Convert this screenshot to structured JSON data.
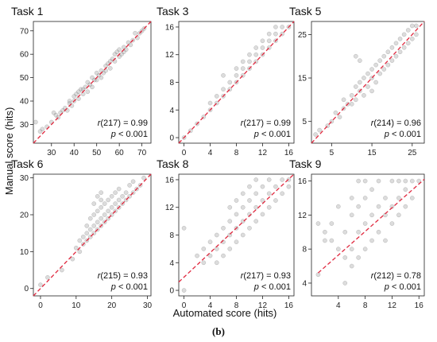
{
  "figure": {
    "ylabel": "Manual score (hits)",
    "xlabel": "Automated score (hits)",
    "caption": "(b)"
  },
  "chart_data": [
    {
      "type": "scatter",
      "title": "Task 1",
      "stat_r": "(217) = 0.99",
      "stat_p": "< 0.001",
      "xlim": [
        22,
        74
      ],
      "ylim": [
        22,
        74
      ],
      "xticks": [
        30,
        40,
        50,
        60,
        70
      ],
      "yticks": [
        30,
        40,
        50,
        60,
        70
      ],
      "fit": [
        [
          22,
          22
        ],
        [
          74,
          74
        ]
      ],
      "points": [
        [
          23,
          31
        ],
        [
          25,
          27
        ],
        [
          26,
          28
        ],
        [
          28,
          29
        ],
        [
          30,
          31
        ],
        [
          31,
          35
        ],
        [
          32,
          34
        ],
        [
          33,
          33
        ],
        [
          34,
          35
        ],
        [
          35,
          36
        ],
        [
          36,
          37
        ],
        [
          37,
          36
        ],
        [
          38,
          39
        ],
        [
          38,
          40
        ],
        [
          39,
          38
        ],
        [
          40,
          40
        ],
        [
          40,
          42
        ],
        [
          41,
          43
        ],
        [
          42,
          41
        ],
        [
          42,
          44
        ],
        [
          43,
          45
        ],
        [
          44,
          43
        ],
        [
          44,
          45
        ],
        [
          45,
          46
        ],
        [
          46,
          44
        ],
        [
          46,
          48
        ],
        [
          47,
          47
        ],
        [
          48,
          50
        ],
        [
          48,
          46
        ],
        [
          49,
          49
        ],
        [
          50,
          49
        ],
        [
          50,
          52
        ],
        [
          51,
          51
        ],
        [
          52,
          53
        ],
        [
          52,
          50
        ],
        [
          53,
          52
        ],
        [
          54,
          55
        ],
        [
          54,
          53
        ],
        [
          55,
          56
        ],
        [
          56,
          54
        ],
        [
          56,
          57
        ],
        [
          57,
          58
        ],
        [
          58,
          57
        ],
        [
          58,
          60
        ],
        [
          59,
          61
        ],
        [
          60,
          59
        ],
        [
          60,
          62
        ],
        [
          61,
          60
        ],
        [
          62,
          63
        ],
        [
          62,
          61
        ],
        [
          63,
          62
        ],
        [
          64,
          65
        ],
        [
          65,
          64
        ],
        [
          66,
          66
        ],
        [
          67,
          69
        ],
        [
          68,
          67
        ],
        [
          69,
          69
        ],
        [
          70,
          70
        ],
        [
          71,
          71
        ]
      ]
    },
    {
      "type": "scatter",
      "title": "Task 3",
      "stat_r": "(217) = 0.99",
      "stat_p": "< 0.001",
      "xlim": [
        -0.8,
        16.8
      ],
      "ylim": [
        -0.8,
        16.8
      ],
      "xticks": [
        0,
        4,
        8,
        12,
        16
      ],
      "yticks": [
        0,
        4,
        8,
        12,
        16
      ],
      "fit": [
        [
          -0.8,
          -0.8
        ],
        [
          16.8,
          16.8
        ]
      ],
      "points": [
        [
          0,
          0
        ],
        [
          1,
          1
        ],
        [
          2,
          2
        ],
        [
          3,
          3
        ],
        [
          4,
          4
        ],
        [
          4,
          5
        ],
        [
          5,
          5
        ],
        [
          5,
          6
        ],
        [
          6,
          6
        ],
        [
          6,
          7
        ],
        [
          6,
          9
        ],
        [
          7,
          7
        ],
        [
          7,
          8
        ],
        [
          8,
          8
        ],
        [
          8,
          9
        ],
        [
          8,
          10
        ],
        [
          9,
          9
        ],
        [
          9,
          10
        ],
        [
          9,
          11
        ],
        [
          10,
          10
        ],
        [
          10,
          11
        ],
        [
          10,
          12
        ],
        [
          11,
          11
        ],
        [
          11,
          12
        ],
        [
          11,
          13
        ],
        [
          12,
          12
        ],
        [
          12,
          13
        ],
        [
          12,
          14
        ],
        [
          13,
          13
        ],
        [
          13,
          14
        ],
        [
          13,
          15
        ],
        [
          14,
          14
        ],
        [
          14,
          15
        ],
        [
          14,
          16
        ],
        [
          15,
          15
        ],
        [
          15,
          16
        ],
        [
          16,
          16
        ]
      ]
    },
    {
      "type": "scatter",
      "title": "Task 5",
      "stat_r": "(214) = 0.96",
      "stat_p": "< 0.001",
      "xlim": [
        0,
        28
      ],
      "ylim": [
        0,
        28
      ],
      "xticks": [
        5,
        15,
        25
      ],
      "yticks": [
        5,
        15,
        25
      ],
      "fit": [
        [
          0,
          0
        ],
        [
          28,
          28
        ]
      ],
      "points": [
        [
          1,
          2
        ],
        [
          2,
          3
        ],
        [
          4,
          4
        ],
        [
          5,
          5
        ],
        [
          6,
          7
        ],
        [
          7,
          6
        ],
        [
          8,
          8
        ],
        [
          8,
          10
        ],
        [
          9,
          9
        ],
        [
          10,
          11
        ],
        [
          10,
          9
        ],
        [
          11,
          10
        ],
        [
          11,
          13
        ],
        [
          12,
          12
        ],
        [
          12,
          14
        ],
        [
          13,
          11
        ],
        [
          13,
          15
        ],
        [
          14,
          13
        ],
        [
          14,
          16
        ],
        [
          15,
          15
        ],
        [
          15,
          17
        ],
        [
          15,
          12
        ],
        [
          16,
          14
        ],
        [
          16,
          18
        ],
        [
          17,
          16
        ],
        [
          17,
          19
        ],
        [
          18,
          17
        ],
        [
          18,
          20
        ],
        [
          19,
          18
        ],
        [
          19,
          21
        ],
        [
          20,
          19
        ],
        [
          20,
          22
        ],
        [
          21,
          20
        ],
        [
          21,
          23
        ],
        [
          22,
          21
        ],
        [
          22,
          24
        ],
        [
          23,
          22
        ],
        [
          23,
          25
        ],
        [
          24,
          23
        ],
        [
          24,
          26
        ],
        [
          25,
          24
        ],
        [
          25,
          27
        ],
        [
          26,
          25
        ],
        [
          26,
          27
        ],
        [
          11,
          20
        ],
        [
          12,
          19
        ]
      ]
    },
    {
      "type": "scatter",
      "title": "Task 6",
      "stat_r": "(215) = 0.93",
      "stat_p": "< 0.001",
      "xlim": [
        -2,
        31
      ],
      "ylim": [
        -2,
        31
      ],
      "xticks": [
        0,
        10,
        20,
        30
      ],
      "yticks": [
        0,
        10,
        20,
        30
      ],
      "fit": [
        [
          -2,
          -2
        ],
        [
          31,
          31
        ]
      ],
      "points": [
        [
          0,
          1
        ],
        [
          2,
          3
        ],
        [
          6,
          5
        ],
        [
          9,
          8
        ],
        [
          10,
          11
        ],
        [
          11,
          10
        ],
        [
          11,
          13
        ],
        [
          12,
          12
        ],
        [
          12,
          14
        ],
        [
          13,
          13
        ],
        [
          13,
          15
        ],
        [
          13,
          17
        ],
        [
          14,
          14
        ],
        [
          14,
          16
        ],
        [
          14,
          19
        ],
        [
          15,
          15
        ],
        [
          15,
          17
        ],
        [
          15,
          20
        ],
        [
          15,
          23
        ],
        [
          16,
          16
        ],
        [
          16,
          18
        ],
        [
          16,
          21
        ],
        [
          17,
          17
        ],
        [
          17,
          19
        ],
        [
          17,
          22
        ],
        [
          17,
          24
        ],
        [
          18,
          18
        ],
        [
          18,
          20
        ],
        [
          18,
          23
        ],
        [
          19,
          19
        ],
        [
          19,
          21
        ],
        [
          19,
          24
        ],
        [
          20,
          20
        ],
        [
          20,
          22
        ],
        [
          20,
          25
        ],
        [
          21,
          21
        ],
        [
          21,
          23
        ],
        [
          21,
          26
        ],
        [
          22,
          22
        ],
        [
          22,
          24
        ],
        [
          22,
          27
        ],
        [
          23,
          23
        ],
        [
          23,
          25
        ],
        [
          24,
          24
        ],
        [
          24,
          26
        ],
        [
          25,
          25
        ],
        [
          25,
          28
        ],
        [
          26,
          26
        ],
        [
          26,
          29
        ],
        [
          27,
          27
        ],
        [
          28,
          28
        ],
        [
          29,
          30
        ],
        [
          17,
          26
        ],
        [
          16,
          25
        ]
      ]
    },
    {
      "type": "scatter",
      "title": "Task 8",
      "stat_r": "(217) = 0.93",
      "stat_p": "< 0.001",
      "xlim": [
        -0.8,
        16.8
      ],
      "ylim": [
        -0.8,
        16.8
      ],
      "xticks": [
        0,
        4,
        8,
        12,
        16
      ],
      "yticks": [
        0,
        4,
        8,
        12,
        16
      ],
      "fit": [
        [
          -0.8,
          1.2
        ],
        [
          16.8,
          16.8
        ]
      ],
      "points": [
        [
          0,
          9
        ],
        [
          0,
          0
        ],
        [
          2,
          5
        ],
        [
          3,
          4
        ],
        [
          3,
          6
        ],
        [
          4,
          5
        ],
        [
          4,
          7
        ],
        [
          5,
          4
        ],
        [
          5,
          6
        ],
        [
          5,
          8
        ],
        [
          6,
          5
        ],
        [
          6,
          7
        ],
        [
          6,
          9
        ],
        [
          7,
          6
        ],
        [
          7,
          8
        ],
        [
          7,
          10
        ],
        [
          7,
          12
        ],
        [
          8,
          7
        ],
        [
          8,
          9
        ],
        [
          8,
          11
        ],
        [
          8,
          13
        ],
        [
          9,
          8
        ],
        [
          9,
          10
        ],
        [
          9,
          12
        ],
        [
          9,
          14
        ],
        [
          10,
          9
        ],
        [
          10,
          11
        ],
        [
          10,
          13
        ],
        [
          10,
          15
        ],
        [
          11,
          10
        ],
        [
          11,
          12
        ],
        [
          11,
          14
        ],
        [
          11,
          16
        ],
        [
          12,
          11
        ],
        [
          12,
          13
        ],
        [
          12,
          15
        ],
        [
          13,
          12
        ],
        [
          13,
          14
        ],
        [
          13,
          16
        ],
        [
          14,
          13
        ],
        [
          14,
          15
        ],
        [
          15,
          14
        ],
        [
          15,
          16
        ],
        [
          16,
          15
        ],
        [
          16,
          16
        ]
      ]
    },
    {
      "type": "scatter",
      "title": "Task 9",
      "stat_r": "(212) = 0.78",
      "stat_p": "< 0.001",
      "xlim": [
        0,
        16.8
      ],
      "ylim": [
        2.5,
        16.8
      ],
      "xticks": [
        4,
        8,
        12,
        16
      ],
      "yticks": [
        4,
        8,
        12,
        16
      ],
      "fit": [
        [
          1,
          5.2
        ],
        [
          16.8,
          16.2
        ]
      ],
      "points": [
        [
          1,
          5
        ],
        [
          1,
          11
        ],
        [
          2,
          10
        ],
        [
          2,
          9
        ],
        [
          3,
          9
        ],
        [
          3,
          11
        ],
        [
          4,
          8
        ],
        [
          4,
          13
        ],
        [
          5,
          4
        ],
        [
          5,
          7
        ],
        [
          5,
          10
        ],
        [
          6,
          6
        ],
        [
          6,
          8
        ],
        [
          6,
          12
        ],
        [
          6,
          14
        ],
        [
          7,
          7
        ],
        [
          7,
          10
        ],
        [
          7,
          13
        ],
        [
          7,
          16
        ],
        [
          8,
          8
        ],
        [
          8,
          11
        ],
        [
          8,
          14
        ],
        [
          8,
          16
        ],
        [
          9,
          9
        ],
        [
          9,
          12
        ],
        [
          9,
          15
        ],
        [
          10,
          10
        ],
        [
          10,
          13
        ],
        [
          10,
          16
        ],
        [
          11,
          9
        ],
        [
          11,
          12
        ],
        [
          11,
          14
        ],
        [
          12,
          11
        ],
        [
          12,
          13
        ],
        [
          12,
          16
        ],
        [
          13,
          12
        ],
        [
          13,
          14
        ],
        [
          13,
          16
        ],
        [
          14,
          13
        ],
        [
          14,
          15
        ],
        [
          14,
          16
        ],
        [
          15,
          14
        ],
        [
          15,
          16
        ],
        [
          16,
          16
        ]
      ]
    }
  ]
}
